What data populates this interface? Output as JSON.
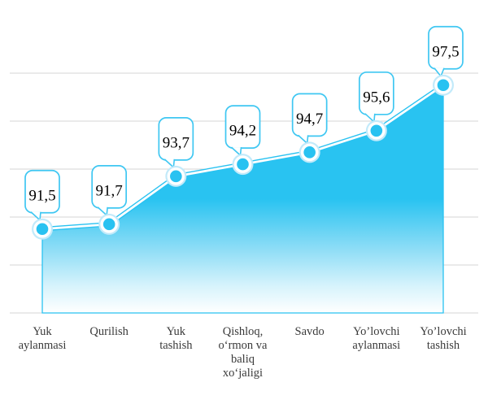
{
  "chart_data": {
    "type": "area",
    "title": "",
    "xlabel": "",
    "ylabel": "",
    "legend": "none",
    "grid": "horizontal",
    "ylim": [
      88,
      98
    ],
    "gridline_step": 2,
    "categories": [
      "Yuk aylanmasi",
      "Qurilish",
      "Yuk tashish",
      "Qishloq, o‘rmon va baliq xo‘jaligi",
      "Savdo",
      "Yo’lovchi aylanmasi",
      "Yo’lovchi tashish"
    ],
    "category_lines": [
      [
        "Yuk",
        "aylanmasi"
      ],
      [
        "Qurilish"
      ],
      [
        "Yuk",
        "tashish"
      ],
      [
        "Qishloq,",
        "o‘rmon va",
        "baliq",
        "xo‘jaligi"
      ],
      [
        "Savdo"
      ],
      [
        "Yo’lovchi",
        "aylanmasi"
      ],
      [
        "Yo’lovchi",
        "tashish"
      ]
    ],
    "values": [
      91.5,
      91.7,
      93.7,
      94.2,
      94.7,
      95.6,
      97.5
    ],
    "data_labels": [
      "91,5",
      "91,7",
      "93,7",
      "94,2",
      "94,7",
      "95,6",
      "97,5"
    ],
    "colors": {
      "accent": "#29c2f1",
      "callout_border": "#3fc7f2",
      "callout_fill": "#ffffff",
      "marker_halo": "#c2eafa",
      "marker_ring": "#ffffff",
      "gridline": "#d6d6d6",
      "data_label_text": "#000000",
      "category_text": "#3a3a3a",
      "area_fill_top": "#29c3f1",
      "area_fill_bottom": "#ffffff"
    }
  }
}
